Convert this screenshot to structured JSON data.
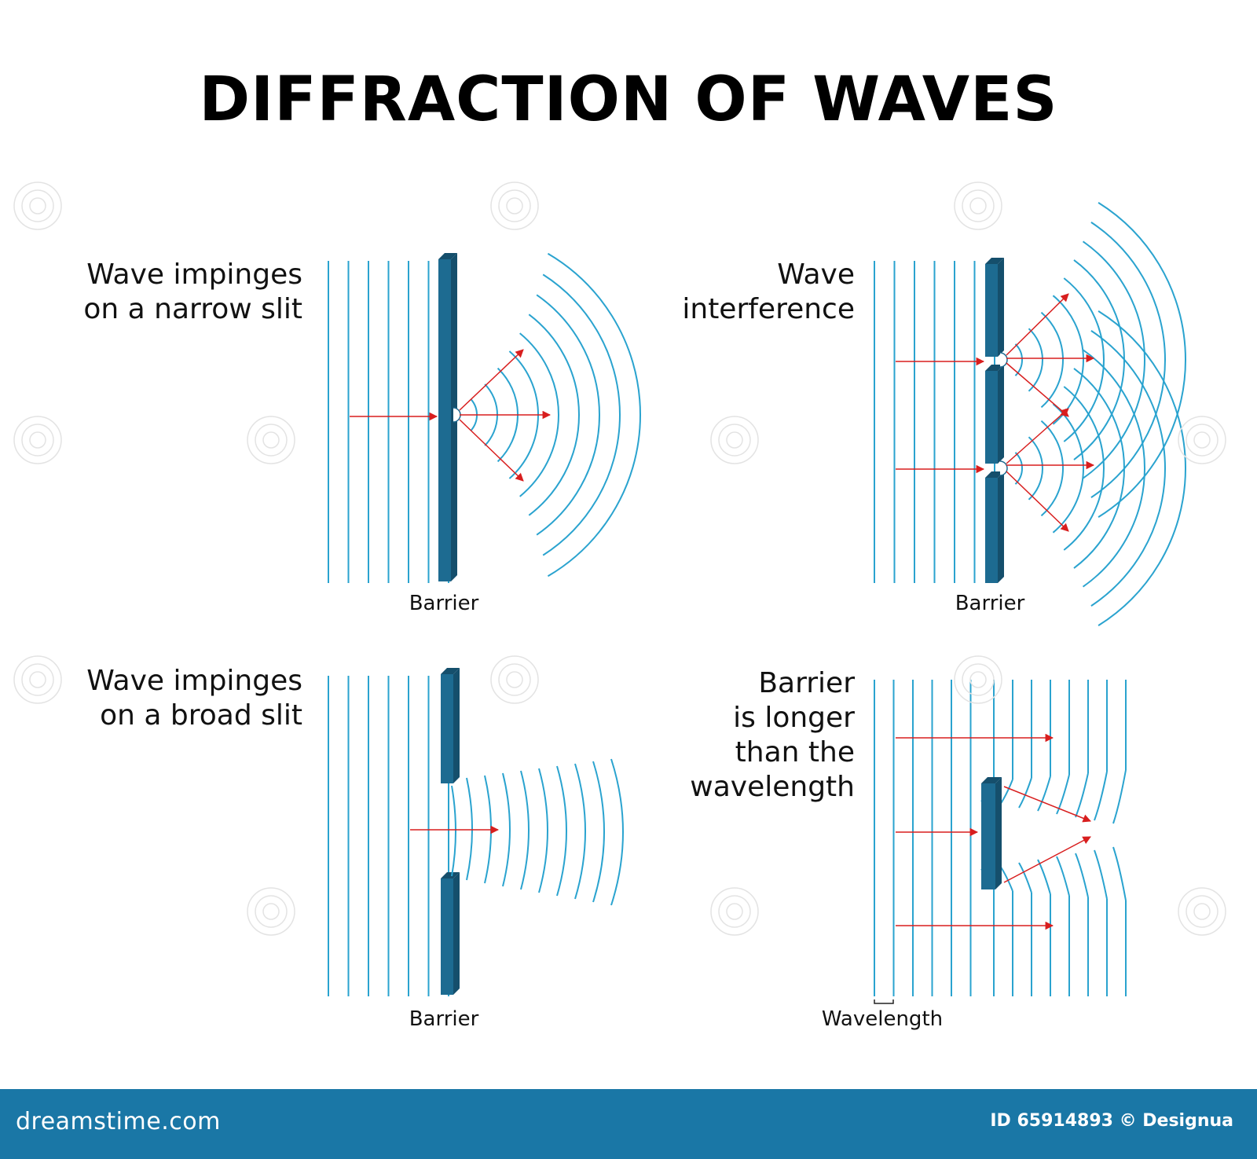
{
  "title": "DIFFRACTION OF WAVES",
  "panels": [
    {
      "label_lines": [
        "Wave impinges",
        "on a narrow slit"
      ],
      "caption": "Barrier"
    },
    {
      "label_lines": [
        "Wave",
        "interference"
      ],
      "caption": "Barrier"
    },
    {
      "label_lines": [
        "Wave impinges",
        "on a broad slit"
      ],
      "caption": "Barrier"
    },
    {
      "label_lines": [
        "Barrier",
        "is longer",
        "than the",
        "wavelength"
      ],
      "caption": "Wavelength"
    }
  ],
  "footer": {
    "brand": "dreamstime.com",
    "credit": "ID 65914893 © Designua"
  },
  "colors": {
    "wave": "#2aa3cf",
    "barrier": "#1d6b91",
    "barrier_side": "#154f6c",
    "arrow": "#d81e1e",
    "footer_bg": "#1a77a6"
  }
}
